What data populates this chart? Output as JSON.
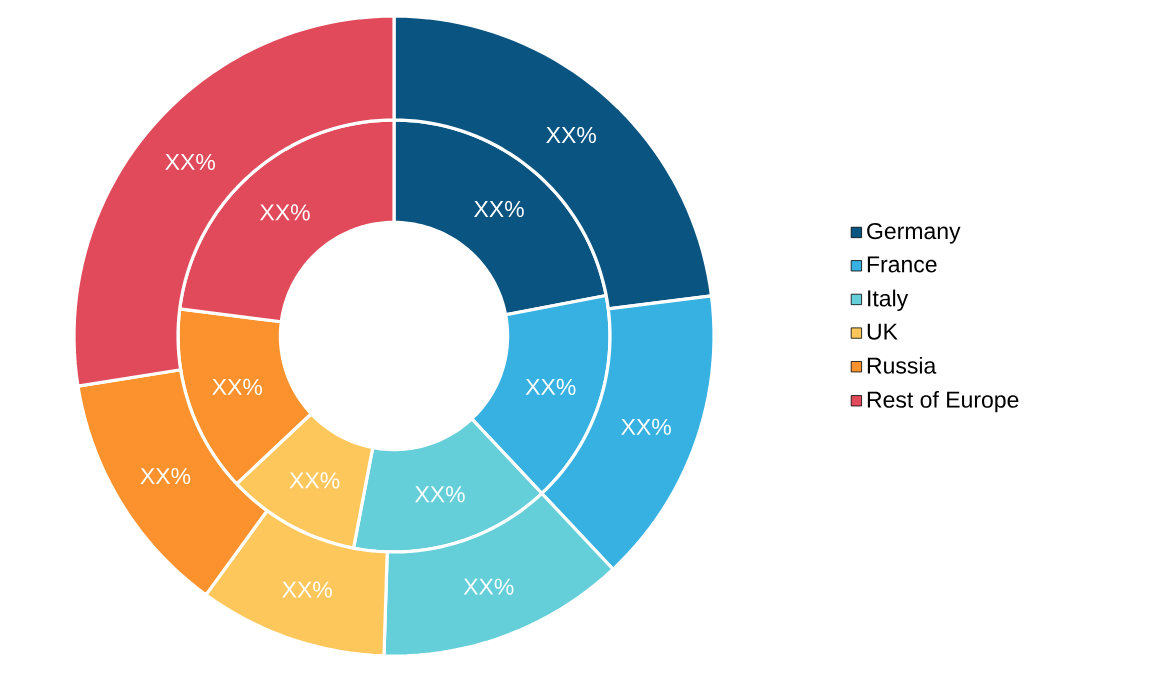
{
  "chart_data": {
    "type": "donut",
    "categories": [
      "Germany",
      "France",
      "Italy",
      "UK",
      "Russia",
      "Rest of Europe"
    ],
    "colors": [
      "#0a5482",
      "#36b1e2",
      "#64cfd9",
      "#fec75b",
      "#fb922d",
      "#e14a5a"
    ],
    "series": [
      {
        "values": [
          22,
          16,
          15,
          10,
          14,
          23
        ],
        "value_labels": [
          "XX%",
          "XX%",
          "XX%",
          "XX%",
          "XX%",
          "XX%"
        ]
      },
      {
        "values": [
          23,
          15,
          12.5,
          9.5,
          12.5,
          27.5
        ],
        "value_labels": [
          "XX%",
          "XX%",
          "XX%",
          "XX%",
          "XX%",
          "XX%"
        ]
      }
    ],
    "legend": "right"
  }
}
